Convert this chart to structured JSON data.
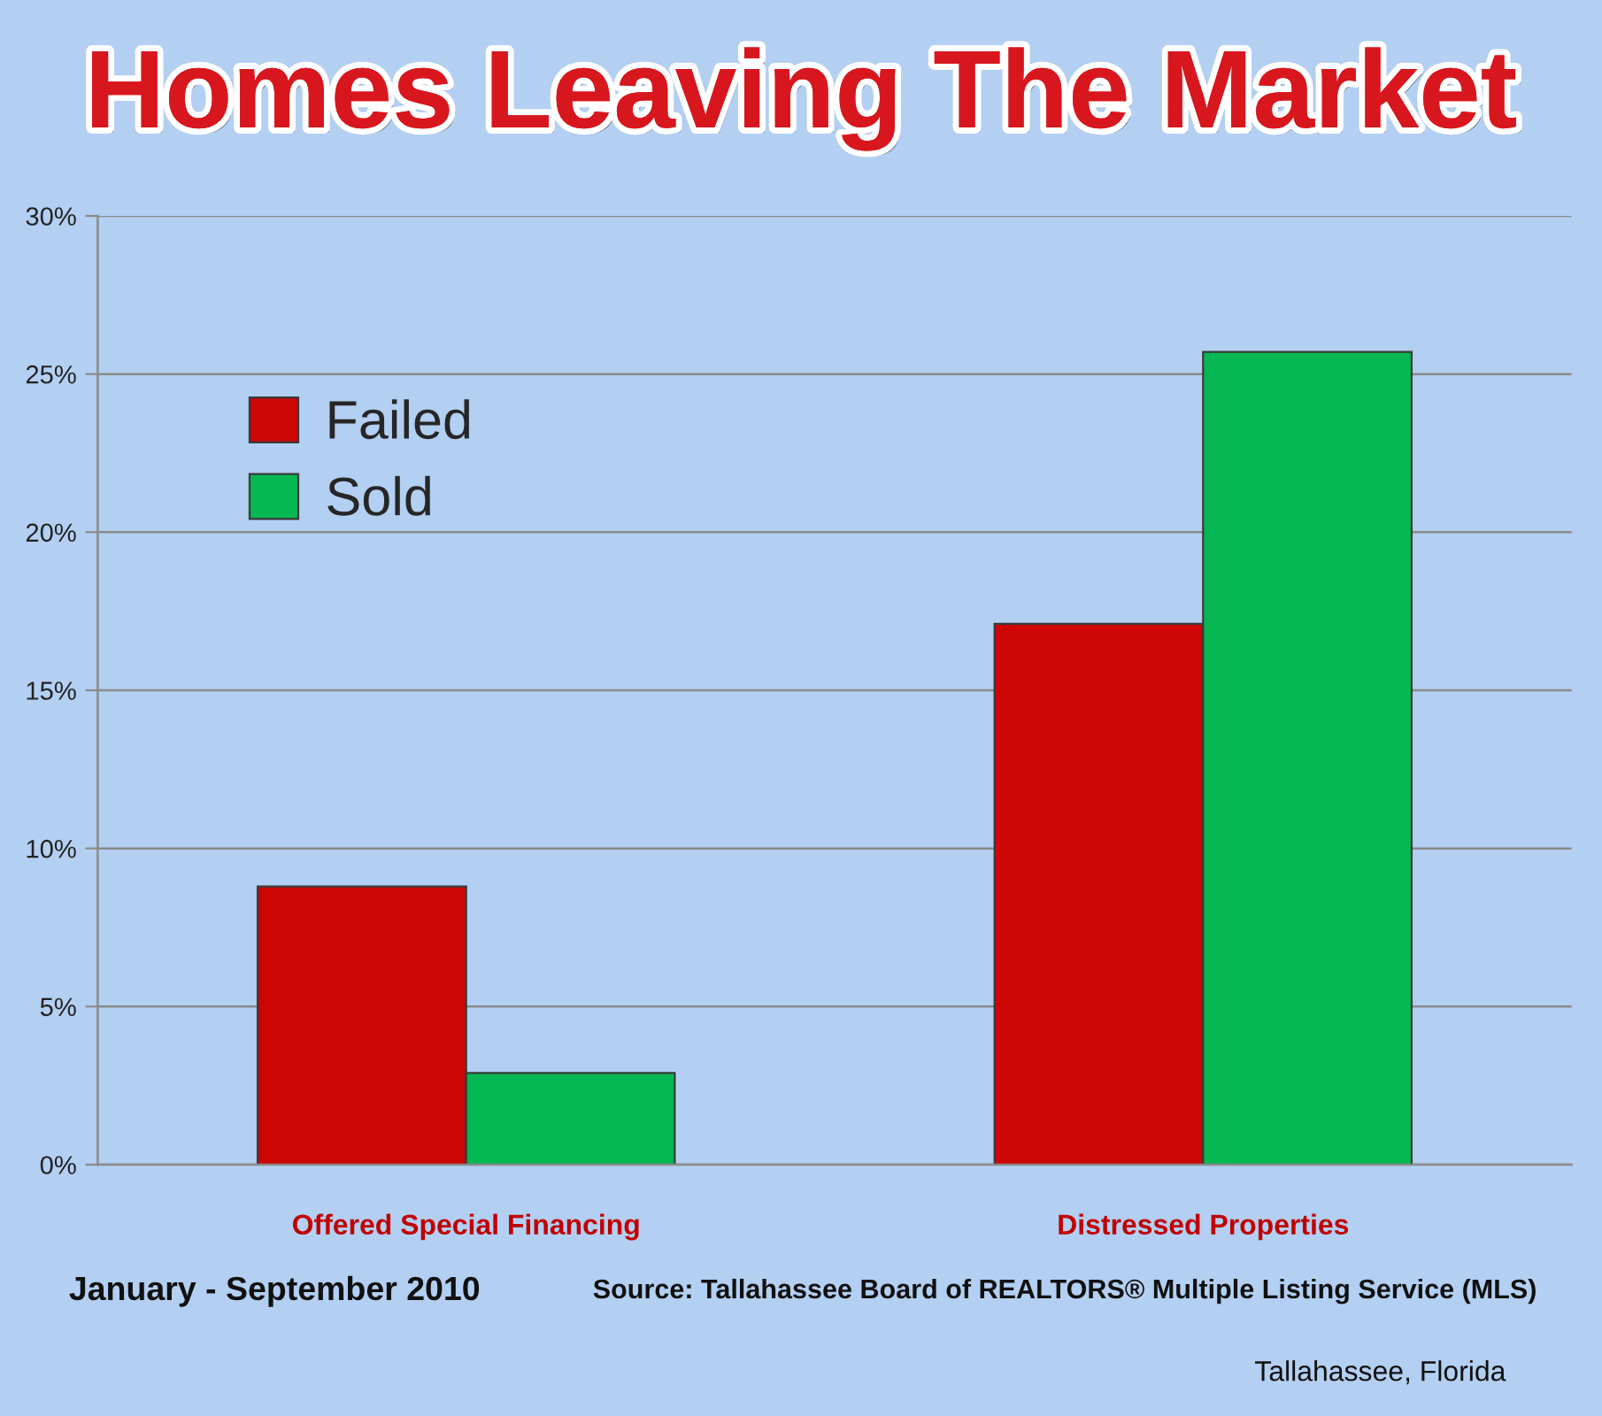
{
  "chart_data": {
    "type": "bar",
    "title": "Homes Leaving The Market",
    "categories": [
      "Offered Special Financing",
      "Distressed Properties"
    ],
    "series": [
      {
        "name": "Failed",
        "color": "#cc0605",
        "values": [
          8.8,
          17.1
        ]
      },
      {
        "name": "Sold",
        "color": "#06b853",
        "values": [
          2.9,
          25.7
        ]
      }
    ],
    "ylim": [
      0,
      30
    ],
    "yticks": [
      {
        "value": 0,
        "label": "0%"
      },
      {
        "value": 5,
        "label": "5%"
      },
      {
        "value": 10,
        "label": "10%"
      },
      {
        "value": 15,
        "label": "15%"
      },
      {
        "value": 20,
        "label": "20%"
      },
      {
        "value": 25,
        "label": "25%"
      },
      {
        "value": 30,
        "label": "30%"
      }
    ],
    "grid": "y",
    "legend": "top left",
    "annotations": [
      "January - September 2010",
      "Source: Tallahassee Board of REALTORS® Multiple Listing Service (MLS)",
      "Tallahassee, Florida"
    ]
  }
}
